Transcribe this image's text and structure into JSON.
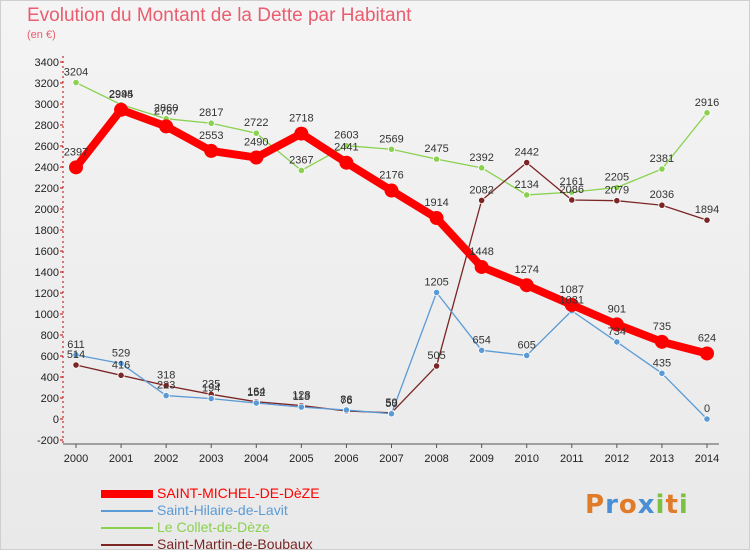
{
  "title": "Evolution du Montant de la Dette par Habitant",
  "subtitle": "(en €)",
  "logo": {
    "letters": [
      "P",
      "r",
      "o",
      "x",
      "i",
      "t",
      "i"
    ],
    "colors": [
      "#e07b2a",
      "#4a8fd6",
      "#e07b2a",
      "#4a8fd6",
      "#7cc242",
      "#e07b2a",
      "#7cc242"
    ]
  },
  "chart_data": {
    "type": "line",
    "x": [
      "2000",
      "2001",
      "2002",
      "2003",
      "2004",
      "2005",
      "2006",
      "2007",
      "2008",
      "2009",
      "2010",
      "2011",
      "2012",
      "2013",
      "2014"
    ],
    "ylim": [
      -200,
      3400
    ],
    "yticks": [
      -200,
      0,
      200,
      400,
      600,
      800,
      1000,
      1200,
      1400,
      1600,
      1800,
      2000,
      2200,
      2400,
      2600,
      2800,
      3000,
      3200,
      3400
    ],
    "grid": false,
    "legend_position": "bottom-left",
    "series": [
      {
        "name": "SAINT-MICHEL-DE-DèZE",
        "color": "#ff0000",
        "values": [
          2397,
          2945,
          2787,
          2553,
          2490,
          2718,
          2441,
          2176,
          1914,
          1448,
          1274,
          1087,
          901,
          735,
          624
        ]
      },
      {
        "name": "Saint-Hilaire-de-Lavit",
        "color": "#5b9bd5",
        "values": [
          611,
          529,
          223,
          194,
          152,
          113,
          86,
          50,
          1205,
          654,
          605,
          1031,
          734,
          435,
          0
        ]
      },
      {
        "name": "Le Collet-de-Dèze",
        "color": "#8ad14f",
        "values": [
          3204,
          2994,
          2860,
          2817,
          2722,
          2367,
          2603,
          2569,
          2475,
          2392,
          2134,
          2161,
          2205,
          2381,
          2916
        ]
      },
      {
        "name": "Saint-Martin-de-Boubaux",
        "color": "#7b2525",
        "values": [
          514,
          416,
          318,
          235,
          164,
          128,
          76,
          59,
          505,
          2082,
          2442,
          2086,
          2079,
          2036,
          1894
        ]
      }
    ]
  }
}
